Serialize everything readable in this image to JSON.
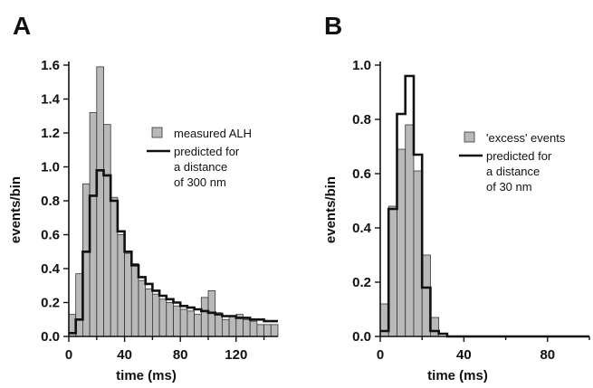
{
  "chart_data": [
    {
      "panel": "A",
      "type": "bar",
      "xlabel": "time (ms)",
      "ylabel": "events/bin",
      "xlim": [
        0,
        150
      ],
      "ylim": [
        0,
        1.6
      ],
      "xticks": [
        0,
        40,
        80,
        120
      ],
      "yticks": [
        0.0,
        0.2,
        0.4,
        0.6,
        0.8,
        1.0,
        1.2,
        1.4,
        1.6
      ],
      "bin_width": 5,
      "legend_position": "right",
      "series": [
        {
          "name": "measured ALH",
          "style": "histogram",
          "color": "#b9b9b9",
          "values": [
            0.13,
            0.37,
            0.9,
            1.32,
            1.59,
            1.25,
            0.82,
            0.6,
            0.49,
            0.43,
            0.33,
            0.28,
            0.25,
            0.22,
            0.2,
            0.18,
            0.16,
            0.15,
            0.13,
            0.23,
            0.27,
            0.14,
            0.1,
            0.12,
            0.13,
            0.1,
            0.09,
            0.07,
            0.07,
            0.07
          ]
        },
        {
          "name": "predicted for a distance of 300 nm",
          "legend_lines": [
            "predicted for",
            "a distance",
            "of 300 nm"
          ],
          "style": "step",
          "color": "#111111",
          "values": [
            0.02,
            0.1,
            0.5,
            0.83,
            0.98,
            0.95,
            0.8,
            0.62,
            0.5,
            0.42,
            0.35,
            0.31,
            0.27,
            0.24,
            0.22,
            0.2,
            0.18,
            0.17,
            0.16,
            0.15,
            0.14,
            0.13,
            0.12,
            0.12,
            0.11,
            0.11,
            0.1,
            0.1,
            0.09,
            0.09
          ]
        }
      ]
    },
    {
      "panel": "B",
      "type": "bar",
      "xlabel": "time (ms)",
      "ylabel": "events/bin",
      "xlim": [
        0,
        100
      ],
      "ylim": [
        0,
        1.0
      ],
      "xticks": [
        0,
        40,
        80
      ],
      "yticks": [
        0.0,
        0.2,
        0.4,
        0.6,
        0.8,
        1.0
      ],
      "bin_width": 4,
      "legend_position": "right",
      "series": [
        {
          "name": "'excess' events",
          "style": "histogram",
          "color": "#b9b9b9",
          "values": [
            0.12,
            0.48,
            0.69,
            0.78,
            0.61,
            0.3,
            0.07,
            0.0,
            0.0,
            0.0,
            0.0,
            0.0,
            0.0,
            0.0,
            0.0,
            0.0,
            0.0,
            0.0,
            0.0,
            0.0,
            0.0,
            0.0,
            0.0,
            0.0,
            0.0
          ]
        },
        {
          "name": "predicted for a distance of 30 nm",
          "legend_lines": [
            "predicted for",
            "a distance",
            "of 30 nm"
          ],
          "style": "step",
          "color": "#111111",
          "values": [
            0.02,
            0.47,
            0.82,
            0.96,
            0.67,
            0.18,
            0.02,
            0.01,
            0.0,
            0.0,
            0.0,
            0.0,
            0.0,
            0.0,
            0.0,
            0.0,
            0.0,
            0.0,
            0.0,
            0.0,
            0.0,
            0.0,
            0.0,
            0.0,
            0.0
          ]
        }
      ]
    }
  ]
}
